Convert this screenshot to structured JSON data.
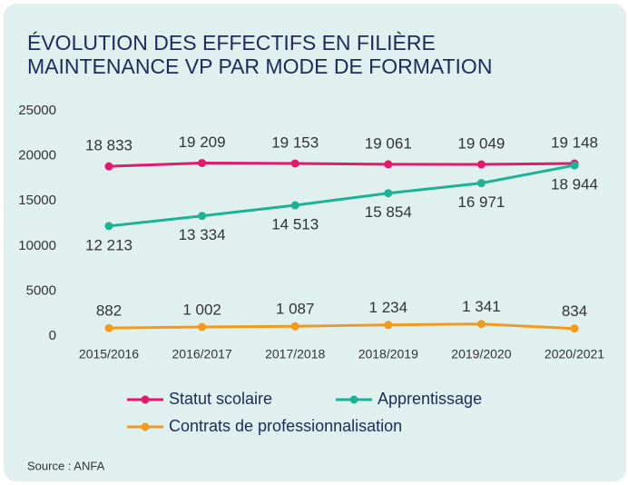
{
  "chart_data": {
    "type": "line",
    "title": "ÉVOLUTION DES EFFECTIFS EN FILIÈRE MAINTENANCE VP PAR MODE DE FORMATION",
    "categories": [
      "2015/2016",
      "2016/2017",
      "2017/2018",
      "2018/2019",
      "2019/2020",
      "2020/2021"
    ],
    "series": [
      {
        "name": "Statut scolaire",
        "color": "#e5186b",
        "values": [
          18833,
          19209,
          19153,
          19061,
          19049,
          19148
        ],
        "value_labels": [
          "18 833",
          "19 209",
          "19 153",
          "19 061",
          "19 049",
          "19 148"
        ]
      },
      {
        "name": "Apprentissage",
        "color": "#1bb394",
        "values": [
          12213,
          13334,
          14513,
          15854,
          16971,
          18944
        ],
        "value_labels": [
          "12 213",
          "13 334",
          "14 513",
          "15 854",
          "16 971",
          "18 944"
        ]
      },
      {
        "name": "Contrats de professionnalisation",
        "color": "#f39a1e",
        "values": [
          882,
          1002,
          1087,
          1234,
          1341,
          834
        ],
        "value_labels": [
          "882",
          "1 002",
          "1 087",
          "1 234",
          "1 341",
          "834"
        ]
      }
    ],
    "ylim": [
      0,
      25000
    ],
    "yticks": [
      0,
      5000,
      10000,
      15000,
      20000,
      25000
    ],
    "source": "Source : ANFA"
  }
}
